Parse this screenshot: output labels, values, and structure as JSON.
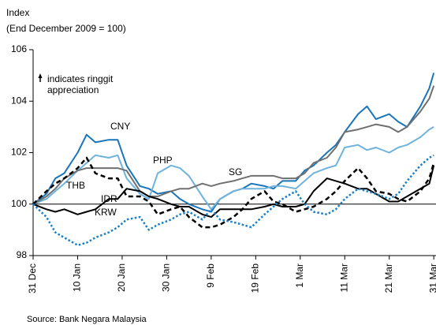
{
  "chart_data": {
    "type": "line",
    "ylabel": [
      "Index",
      "(End December 2009 = 100)"
    ],
    "annotation": [
      "indicates ringgit",
      "appreciation"
    ],
    "source": "Source: Bank Negara Malaysia",
    "x": [
      0,
      3,
      5,
      7,
      10,
      12,
      14,
      17,
      19,
      21,
      24,
      26,
      28,
      31,
      33,
      35,
      38,
      40,
      42,
      45,
      47,
      49,
      52,
      54,
      56,
      59,
      61,
      63,
      66,
      68,
      70,
      73,
      75,
      77,
      80,
      82,
      84,
      87,
      89,
      90
    ],
    "xlim": [
      0,
      90.5
    ],
    "xticks": [
      {
        "value": 0,
        "label": "31 Dec"
      },
      {
        "value": 10,
        "label": "10 Jan"
      },
      {
        "value": 20,
        "label": "20 Jan"
      },
      {
        "value": 30,
        "label": "30 Jan"
      },
      {
        "value": 40,
        "label": "9 Feb"
      },
      {
        "value": 50,
        "label": "19 Feb"
      },
      {
        "value": 60,
        "label": "1 Mar"
      },
      {
        "value": 70,
        "label": "11 Mar"
      },
      {
        "value": 80,
        "label": "21 Mar"
      },
      {
        "value": 90,
        "label": "31 Mar"
      }
    ],
    "ylim": [
      98,
      106
    ],
    "yticks": [
      98,
      100,
      102,
      104,
      106
    ],
    "hline": 100,
    "grid": false,
    "series": [
      {
        "name": "CNY",
        "color": "#1a75b8",
        "dash": "solid",
        "values": [
          100,
          100.4,
          101,
          101.2,
          102,
          102.7,
          102.4,
          102.5,
          102.5,
          101.5,
          100.7,
          100.6,
          100.4,
          100.5,
          100.2,
          100,
          99.8,
          99.7,
          100.2,
          100.5,
          100.6,
          100.8,
          100.7,
          100.6,
          100.9,
          100.9,
          101.3,
          101.5,
          102,
          102.3,
          102.8,
          103.5,
          103.8,
          103.3,
          103.5,
          103.2,
          103,
          103.8,
          104.5,
          105.1
        ]
      },
      {
        "name": "PHP",
        "color": "#6fb3dc",
        "dash": "solid",
        "values": [
          100,
          100.2,
          100.5,
          100.8,
          101.3,
          101.6,
          101.9,
          101.8,
          101.9,
          101,
          100.4,
          100.2,
          101.2,
          101.5,
          101.4,
          101.1,
          100.3,
          99.8,
          100.2,
          100.5,
          100.6,
          100.6,
          100.6,
          100.7,
          100.7,
          100.6,
          100.9,
          101.2,
          101.4,
          101.5,
          102.2,
          102.3,
          102.1,
          102.2,
          102,
          102.2,
          102.3,
          102.6,
          102.9,
          103
        ]
      },
      {
        "name": "SG",
        "color": "#707070",
        "dash": "solid",
        "values": [
          100,
          100.3,
          100.6,
          101,
          101.3,
          101.4,
          101.4,
          101.4,
          101.4,
          101.3,
          100.5,
          100.3,
          100.3,
          100.5,
          100.6,
          100.6,
          100.8,
          100.7,
          100.8,
          100.9,
          101,
          101.1,
          101.1,
          101.1,
          101,
          101,
          101.2,
          101.6,
          101.8,
          102.2,
          102.8,
          102.9,
          103,
          103.1,
          103,
          102.8,
          103,
          103.6,
          104.1,
          104.6
        ]
      },
      {
        "name": "THB",
        "color": "#000000",
        "dash": "solid",
        "values": [
          100,
          99.8,
          99.7,
          99.8,
          99.6,
          99.7,
          99.8,
          100.2,
          100.2,
          100.6,
          100.5,
          100.3,
          100.2,
          100,
          99.9,
          99.9,
          99.6,
          99.5,
          99.8,
          99.8,
          99.8,
          99.8,
          99.9,
          100,
          99.9,
          99.9,
          100,
          100.5,
          101,
          100.9,
          100.8,
          100.6,
          100.6,
          100.4,
          100.1,
          100.1,
          100.3,
          100.6,
          100.8,
          101.5
        ]
      },
      {
        "name": "IDR",
        "color": "#000000",
        "dash": "dashed",
        "values": [
          100,
          100.5,
          100.8,
          101,
          101.4,
          101.8,
          101.2,
          101,
          101,
          100.3,
          100.3,
          100.1,
          99.6,
          99.8,
          99.9,
          99.5,
          99.1,
          99.1,
          99.2,
          99.5,
          99.8,
          100.2,
          100.5,
          100.1,
          100,
          99.7,
          99.8,
          99.9,
          100.2,
          100.5,
          100.9,
          101.4,
          101,
          100.5,
          100.4,
          100.2,
          100.1,
          100.5,
          101,
          101.6
        ]
      },
      {
        "name": "KRW",
        "color": "#1a80c8",
        "dash": "dotted",
        "values": [
          100,
          99.5,
          98.9,
          98.7,
          98.4,
          98.5,
          98.7,
          98.9,
          99.1,
          99.4,
          99.5,
          99,
          99.2,
          99.4,
          99.6,
          99.7,
          99.4,
          99.8,
          99.4,
          99.3,
          99.2,
          99.1,
          99.6,
          99.9,
          100.2,
          100.5,
          100,
          99.7,
          99.6,
          99.8,
          100.2,
          100.6,
          100.5,
          100.4,
          100.2,
          100.4,
          100.9,
          101.5,
          101.8,
          101.9
        ]
      }
    ]
  }
}
